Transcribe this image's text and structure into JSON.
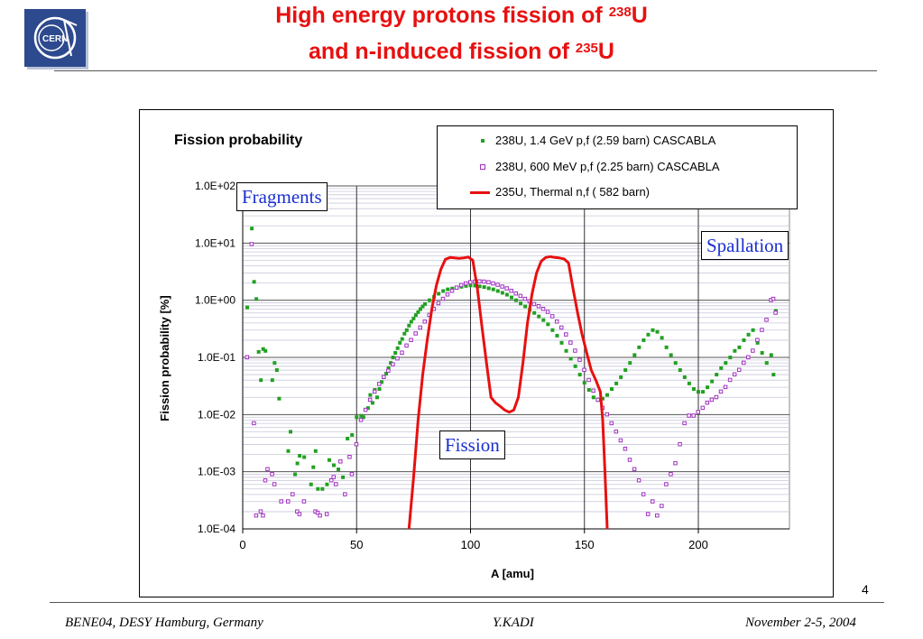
{
  "slide": {
    "title_line1": "High energy protons fission of ",
    "title_line1_sup": "238",
    "title_line1_end": "U",
    "title_line2": "and n-induced fission of ",
    "title_line2_sup": "235",
    "title_line2_end": "U",
    "page_number": "4",
    "footer_left": "BENE04, DESY Hamburg, Germany",
    "footer_center": "Y.KADI",
    "footer_right": "November 2-5, 2004",
    "logo_text": "CERN",
    "callouts": {
      "fragments": "Fragments",
      "spallation": "Spallation",
      "fission": "Fission"
    },
    "colors": {
      "title": "#e81010",
      "callout_text": "#1a2ed0",
      "logo_bg": "#2e4a8e"
    }
  },
  "chart_data": {
    "type": "scatter",
    "title": "Fission probability",
    "xlabel": "A  [amu]",
    "ylabel": "Fission probability  [%]",
    "xlim": [
      0,
      240
    ],
    "ylim": [
      0.0001,
      100
    ],
    "yscale": "log",
    "x_ticks": [
      0,
      50,
      100,
      150,
      200
    ],
    "x_tick_labels": [
      "0",
      "50",
      "100",
      "150",
      "200"
    ],
    "y_ticks": [
      0.0001,
      0.001,
      0.01,
      0.1,
      1,
      10,
      100
    ],
    "y_tick_labels": [
      "1.0E-04",
      "1.0E-03",
      "1.0E-02",
      "1.0E-01",
      "1.0E+00",
      "1.0E+01",
      "1.0E+02"
    ],
    "grid": true,
    "legend_position": "top-right",
    "series": [
      {
        "name": "238U, 1.4 GeV p,f (2.59 barn) CASCABLA",
        "style": "dot",
        "color": "#22a022",
        "points": [
          [
            2,
            0.75
          ],
          [
            4,
            18
          ],
          [
            5,
            2.1
          ],
          [
            6,
            1.05
          ],
          [
            7,
            0.125
          ],
          [
            8,
            0.04
          ],
          [
            9,
            0.14
          ],
          [
            10,
            0.13
          ],
          [
            13,
            0.04
          ],
          [
            14,
            0.08
          ],
          [
            15,
            0.06
          ],
          [
            16,
            0.019
          ],
          [
            20,
            0.0023
          ],
          [
            21,
            0.005
          ],
          [
            23,
            0.0009
          ],
          [
            24,
            0.0014
          ],
          [
            25,
            0.0019
          ],
          [
            27,
            0.0018
          ],
          [
            30,
            0.0006
          ],
          [
            31,
            0.0012
          ],
          [
            32,
            0.0023
          ],
          [
            33,
            0.0005
          ],
          [
            35,
            0.0005
          ],
          [
            37,
            0.0006
          ],
          [
            38,
            0.0016
          ],
          [
            40,
            0.0013
          ],
          [
            42,
            0.0011
          ],
          [
            44,
            0.0008
          ],
          [
            46,
            0.0038
          ],
          [
            48,
            0.0044
          ],
          [
            50,
            0.009
          ],
          [
            52,
            0.0095
          ],
          [
            53,
            0.009
          ],
          [
            55,
            0.013
          ],
          [
            56,
            0.022
          ],
          [
            57,
            0.016
          ],
          [
            58,
            0.027
          ],
          [
            59,
            0.02
          ],
          [
            60,
            0.028
          ],
          [
            61,
            0.037
          ],
          [
            62,
            0.045
          ],
          [
            63,
            0.052
          ],
          [
            64,
            0.065
          ],
          [
            65,
            0.08
          ],
          [
            66,
            0.1
          ],
          [
            67,
            0.12
          ],
          [
            68,
            0.145
          ],
          [
            69,
            0.18
          ],
          [
            70,
            0.21
          ],
          [
            71,
            0.26
          ],
          [
            72,
            0.3
          ],
          [
            73,
            0.36
          ],
          [
            74,
            0.42
          ],
          [
            75,
            0.48
          ],
          [
            76,
            0.55
          ],
          [
            77,
            0.62
          ],
          [
            78,
            0.7
          ],
          [
            79,
            0.78
          ],
          [
            80,
            0.86
          ],
          [
            82,
            1.0
          ],
          [
            84,
            1.15
          ],
          [
            86,
            1.3
          ],
          [
            88,
            1.45
          ],
          [
            90,
            1.55
          ],
          [
            92,
            1.6
          ],
          [
            94,
            1.65
          ],
          [
            96,
            1.72
          ],
          [
            98,
            1.78
          ],
          [
            100,
            1.82
          ],
          [
            102,
            1.8
          ],
          [
            104,
            1.75
          ],
          [
            106,
            1.7
          ],
          [
            108,
            1.62
          ],
          [
            110,
            1.55
          ],
          [
            112,
            1.45
          ],
          [
            114,
            1.35
          ],
          [
            116,
            1.25
          ],
          [
            118,
            1.12
          ],
          [
            120,
            1.0
          ],
          [
            122,
            0.88
          ],
          [
            124,
            0.78
          ],
          [
            126,
            0.68
          ],
          [
            128,
            0.6
          ],
          [
            130,
            0.52
          ],
          [
            132,
            0.45
          ],
          [
            134,
            0.38
          ],
          [
            136,
            0.3
          ],
          [
            138,
            0.24
          ],
          [
            140,
            0.18
          ],
          [
            142,
            0.13
          ],
          [
            144,
            0.095
          ],
          [
            146,
            0.07
          ],
          [
            148,
            0.05
          ],
          [
            150,
            0.036
          ],
          [
            152,
            0.027
          ],
          [
            154,
            0.02
          ],
          [
            156,
            0.018
          ],
          [
            158,
            0.019
          ],
          [
            160,
            0.022
          ],
          [
            162,
            0.028
          ],
          [
            164,
            0.035
          ],
          [
            166,
            0.045
          ],
          [
            168,
            0.06
          ],
          [
            170,
            0.08
          ],
          [
            172,
            0.11
          ],
          [
            174,
            0.15
          ],
          [
            176,
            0.2
          ],
          [
            178,
            0.25
          ],
          [
            180,
            0.3
          ],
          [
            182,
            0.28
          ],
          [
            184,
            0.22
          ],
          [
            186,
            0.15
          ],
          [
            188,
            0.11
          ],
          [
            190,
            0.08
          ],
          [
            192,
            0.06
          ],
          [
            194,
            0.045
          ],
          [
            196,
            0.035
          ],
          [
            198,
            0.028
          ],
          [
            200,
            0.025
          ],
          [
            202,
            0.025
          ],
          [
            204,
            0.03
          ],
          [
            206,
            0.038
          ],
          [
            208,
            0.05
          ],
          [
            210,
            0.065
          ],
          [
            212,
            0.08
          ],
          [
            214,
            0.1
          ],
          [
            216,
            0.13
          ],
          [
            218,
            0.15
          ],
          [
            220,
            0.2
          ],
          [
            222,
            0.25
          ],
          [
            224,
            0.3
          ],
          [
            226,
            0.18
          ],
          [
            228,
            0.12
          ],
          [
            230,
            0.08
          ],
          [
            232,
            0.11
          ],
          [
            233,
            0.05
          ],
          [
            234,
            0.65
          ]
        ]
      },
      {
        "name": "238U, 600 MeV p,f (2.25 barn) CASCABLA",
        "style": "square",
        "color": "#a030c0",
        "points": [
          [
            2,
            0.1
          ],
          [
            4,
            9.5
          ],
          [
            5,
            0.007
          ],
          [
            6,
            0.00017
          ],
          [
            8,
            0.0002
          ],
          [
            9,
            0.00017
          ],
          [
            10,
            0.0007
          ],
          [
            11,
            0.0011
          ],
          [
            13,
            0.0009
          ],
          [
            14,
            0.0006
          ],
          [
            17,
            0.0003
          ],
          [
            20,
            0.0003
          ],
          [
            22,
            0.0004
          ],
          [
            24,
            0.0002
          ],
          [
            25,
            0.00018
          ],
          [
            27,
            0.0003
          ],
          [
            32,
            0.0002
          ],
          [
            33,
            0.00019
          ],
          [
            34,
            0.00017
          ],
          [
            37,
            0.00018
          ],
          [
            39,
            0.0007
          ],
          [
            40,
            0.0008
          ],
          [
            41,
            0.0006
          ],
          [
            43,
            0.0015
          ],
          [
            45,
            0.0004
          ],
          [
            47,
            0.0018
          ],
          [
            48,
            0.0009
          ],
          [
            50,
            0.003
          ],
          [
            52,
            0.008
          ],
          [
            54,
            0.012
          ],
          [
            56,
            0.018
          ],
          [
            58,
            0.025
          ],
          [
            60,
            0.034
          ],
          [
            62,
            0.045
          ],
          [
            64,
            0.058
          ],
          [
            66,
            0.075
          ],
          [
            68,
            0.095
          ],
          [
            70,
            0.12
          ],
          [
            72,
            0.16
          ],
          [
            74,
            0.2
          ],
          [
            76,
            0.26
          ],
          [
            78,
            0.33
          ],
          [
            80,
            0.42
          ],
          [
            82,
            0.55
          ],
          [
            84,
            0.7
          ],
          [
            86,
            0.88
          ],
          [
            88,
            1.05
          ],
          [
            90,
            1.25
          ],
          [
            92,
            1.45
          ],
          [
            94,
            1.65
          ],
          [
            96,
            1.82
          ],
          [
            98,
            1.95
          ],
          [
            100,
            2.05
          ],
          [
            102,
            2.1
          ],
          [
            104,
            2.12
          ],
          [
            106,
            2.1
          ],
          [
            108,
            2.05
          ],
          [
            110,
            1.95
          ],
          [
            112,
            1.85
          ],
          [
            114,
            1.72
          ],
          [
            116,
            1.6
          ],
          [
            118,
            1.45
          ],
          [
            120,
            1.3
          ],
          [
            122,
            1.18
          ],
          [
            124,
            1.05
          ],
          [
            126,
            0.95
          ],
          [
            128,
            0.85
          ],
          [
            130,
            0.78
          ],
          [
            132,
            0.7
          ],
          [
            134,
            0.62
          ],
          [
            136,
            0.52
          ],
          [
            138,
            0.42
          ],
          [
            140,
            0.33
          ],
          [
            142,
            0.25
          ],
          [
            144,
            0.18
          ],
          [
            146,
            0.13
          ],
          [
            148,
            0.09
          ],
          [
            150,
            0.06
          ],
          [
            152,
            0.04
          ],
          [
            154,
            0.026
          ],
          [
            156,
            0.018
          ],
          [
            158,
            0.013
          ],
          [
            160,
            0.01
          ],
          [
            162,
            0.007
          ],
          [
            164,
            0.005
          ],
          [
            166,
            0.0035
          ],
          [
            168,
            0.0025
          ],
          [
            170,
            0.0016
          ],
          [
            172,
            0.0011
          ],
          [
            174,
            0.0007
          ],
          [
            176,
            0.0004
          ],
          [
            178,
            0.00018
          ],
          [
            180,
            0.0003
          ],
          [
            182,
            0.00017
          ],
          [
            184,
            0.00025
          ],
          [
            186,
            0.0006
          ],
          [
            188,
            0.0009
          ],
          [
            190,
            0.0014
          ],
          [
            192,
            0.003
          ],
          [
            194,
            0.007
          ],
          [
            196,
            0.0095
          ],
          [
            198,
            0.0095
          ],
          [
            200,
            0.011
          ],
          [
            202,
            0.013
          ],
          [
            204,
            0.016
          ],
          [
            206,
            0.018
          ],
          [
            208,
            0.02
          ],
          [
            210,
            0.025
          ],
          [
            212,
            0.03
          ],
          [
            214,
            0.04
          ],
          [
            216,
            0.05
          ],
          [
            218,
            0.06
          ],
          [
            220,
            0.08
          ],
          [
            222,
            0.1
          ],
          [
            224,
            0.13
          ],
          [
            226,
            0.2
          ],
          [
            228,
            0.3
          ],
          [
            230,
            0.45
          ],
          [
            232,
            1.0
          ],
          [
            233,
            1.05
          ],
          [
            234,
            0.6
          ]
        ]
      },
      {
        "name": "235U, Thermal n,f  ( 582 barn)",
        "style": "line",
        "color": "#e81010",
        "points": [
          [
            73,
            0.0001
          ],
          [
            75,
            0.0008
          ],
          [
            77,
            0.008
          ],
          [
            79,
            0.05
          ],
          [
            81,
            0.2
          ],
          [
            83,
            0.7
          ],
          [
            85,
            1.8
          ],
          [
            87,
            3.5
          ],
          [
            89,
            5.2
          ],
          [
            91,
            5.6
          ],
          [
            93,
            5.5
          ],
          [
            95,
            5.4
          ],
          [
            97,
            5.5
          ],
          [
            99,
            5.7
          ],
          [
            101,
            5.0
          ],
          [
            103,
            1.6
          ],
          [
            105,
            0.35
          ],
          [
            107,
            0.08
          ],
          [
            109,
            0.02
          ],
          [
            111,
            0.016
          ],
          [
            113,
            0.014
          ],
          [
            115,
            0.012
          ],
          [
            117,
            0.011
          ],
          [
            119,
            0.012
          ],
          [
            121,
            0.02
          ],
          [
            123,
            0.08
          ],
          [
            125,
            0.4
          ],
          [
            127,
            1.3
          ],
          [
            129,
            3.0
          ],
          [
            131,
            4.8
          ],
          [
            133,
            5.6
          ],
          [
            135,
            5.8
          ],
          [
            137,
            5.6
          ],
          [
            139,
            5.5
          ],
          [
            141,
            5.3
          ],
          [
            143,
            4.5
          ],
          [
            145,
            1.6
          ],
          [
            147,
            0.6
          ],
          [
            149,
            0.25
          ],
          [
            151,
            0.12
          ],
          [
            153,
            0.06
          ],
          [
            155,
            0.04
          ],
          [
            157,
            0.025
          ],
          [
            158,
            0.008
          ],
          [
            159,
            0.001
          ],
          [
            160,
            0.0001
          ]
        ]
      }
    ]
  }
}
